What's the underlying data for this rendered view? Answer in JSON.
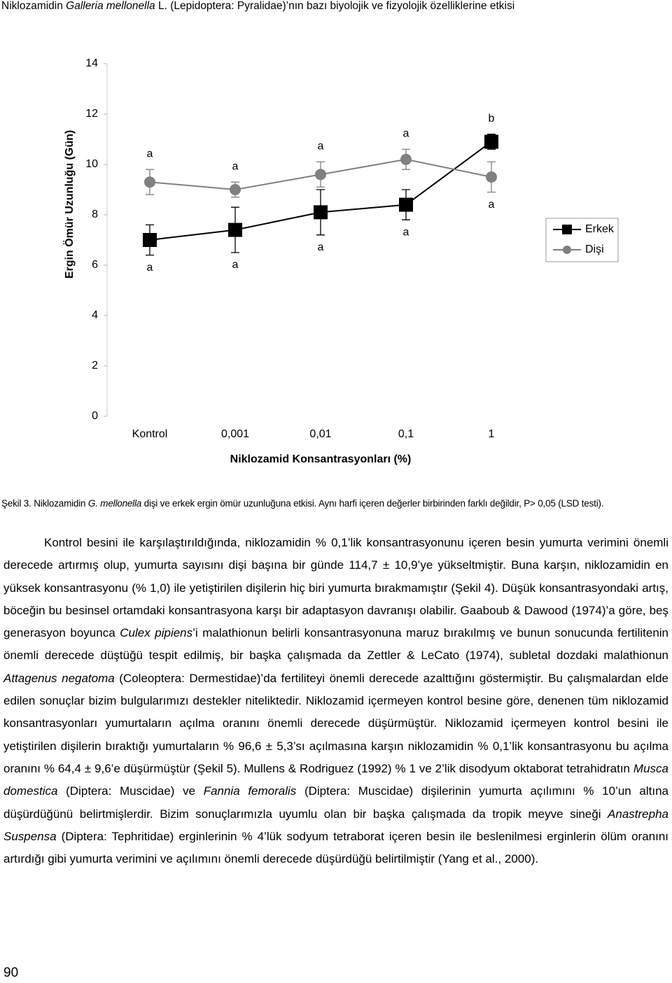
{
  "header": {
    "runs": [
      {
        "text": "Niklozamidin "
      },
      {
        "text": "Galleria mellonella",
        "italic": true
      },
      {
        "text": " L. (Lepidoptera: Pyralidae)’nın bazı biyolojik ve fizyolojik özelliklerine etkisi"
      }
    ]
  },
  "chart_data": {
    "type": "line",
    "ylabel": "Ergin Ömür Uzunluğu (Gün)",
    "xlabel": "Niklozamid Konsantrasyonları (%)",
    "categories": [
      "Kontrol",
      "0,001",
      "0,01",
      "0,1",
      "1"
    ],
    "ylim": [
      0,
      14
    ],
    "yticks": [
      0,
      2,
      4,
      6,
      8,
      10,
      12,
      14
    ],
    "legend": "right",
    "series": [
      {
        "name": "Erkek",
        "color": "#000000",
        "marker": "square",
        "values": [
          7.0,
          7.4,
          8.1,
          8.4,
          10.9
        ],
        "errors": [
          0.6,
          0.9,
          0.9,
          0.6,
          0.3
        ],
        "letters": [
          "a",
          "a",
          "a",
          "a",
          "b"
        ]
      },
      {
        "name": "Dişi",
        "color": "#808080",
        "marker": "circle",
        "values": [
          9.3,
          9.0,
          9.6,
          10.2,
          9.5
        ],
        "errors": [
          0.5,
          0.3,
          0.5,
          0.4,
          0.6
        ],
        "letters": [
          "a",
          "a",
          "a",
          "a",
          "a"
        ]
      }
    ]
  },
  "caption": {
    "runs": [
      {
        "text": "Şekil 3. Niklozamidin "
      },
      {
        "text": "G. mellonella",
        "italic": true
      },
      {
        "text": " dişi ve erkek ergin ömür uzunluğuna etkisi. Aynı harfi içeren değerler birbirinden farklı değildir, P> 0,05 (LSD testi)."
      }
    ]
  },
  "body": {
    "runs": [
      {
        "text": "Kontrol besini ile karşılaştırıldığında, niklozamidin % 0,1’lik konsantrasyonunu içeren besin yumurta verimini önemli derecede artırmış olup, yumurta sayısını dişi başına bir günde 114,7 ± 10,9’ye yükseltmiştir. Buna karşın, niklozamidin en yüksek konsantrasyonu (% 1,0) ile yetiştirilen dişilerin hiç biri yumurta bırakmamıştır (Şekil 4). Düşük konsantrasyondaki artış, böceğin bu besinsel ortamdaki konsantrasyona karşı bir adaptasyon davranışı olabilir. Gaaboub & Dawood (1974)’a göre, beş generasyon boyunca "
      },
      {
        "text": "Culex pipiens",
        "italic": true
      },
      {
        "text": "’i malathionun belirli konsantrasyonuna maruz bırakılmış ve bunun sonucunda fertilitenin önemli derecede düştüğü tespit edilmiş, bir başka çalışmada da Zettler & LeCato (1974), subletal dozdaki malathionun "
      },
      {
        "text": "Attagenus negatoma",
        "italic": true
      },
      {
        "text": " (Coleoptera: Dermestidae)’da fertiliteyi önemli derecede azalttığını göstermiştir. Bu çalışmalardan elde edilen sonuçlar bizim bulgularımızı destekler niteliktedir. Niklozamid içermeyen kontrol besine göre, denenen tüm niklozamid konsantrasyonları yumurtaların açılma oranını önemli derecede düşürmüştür. Niklozamid içermeyen kontrol besini ile yetiştirilen dişilerin bıraktığı yumurtaların % 96,6 ± 5,3’sı açılmasına karşın niklozamidin % 0,1’lik konsantrasyonu bu açılma oranını % 64,4 ± 9,6’e düşürmüştür (Şekil 5). Mullens & Rodriguez (1992) % 1 ve 2’lik disodyum oktaborat tetrahidratın "
      },
      {
        "text": "Musca domestica",
        "italic": true
      },
      {
        "text": " (Diptera: Muscidae) ve "
      },
      {
        "text": "Fannia femoralis",
        "italic": true
      },
      {
        "text": " (Diptera: Muscidae) dişilerinin yumurta açılımını % 10’un altına düşürdüğünü belirtmişlerdir. Bizim sonuçlarımızla uyumlu olan bir başka çalışmada da tropik meyve sineği "
      },
      {
        "text": "Anastrepha Suspensa",
        "italic": true
      },
      {
        "text": " (Diptera: Tephritidae) erginlerinin % 4’lük sodyum tetraborat içeren besin ile beslenilmesi erginlerin ölüm oranını artırdığı gibi yumurta verimini ve açılımını önemli derecede düşürdüğü belirtilmiştir (Yang et al., 2000)."
      }
    ]
  },
  "page_number": "90"
}
